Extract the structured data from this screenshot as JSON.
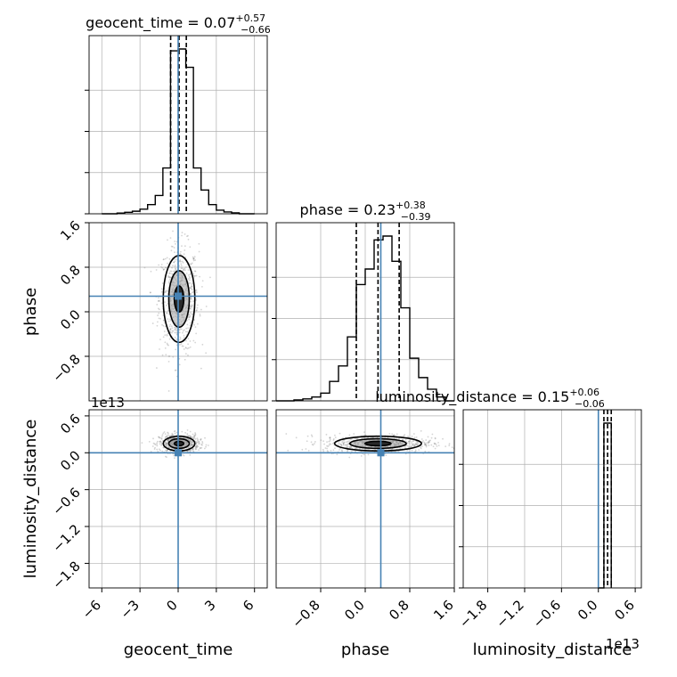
{
  "chart_data": {
    "type": "corner",
    "parameters": [
      "geocent_time",
      "phase",
      "luminosity_distance"
    ],
    "truths": [
      0,
      0.28,
      0
    ],
    "offset_text": {
      "luminosity_distance": "1e13"
    },
    "axes": {
      "geocent_time": {
        "range": [
          -7,
          7
        ],
        "ticks": [
          -6,
          -3,
          0,
          3,
          6
        ],
        "tick_labels": [
          "−6",
          "−3",
          "0",
          "3",
          "6"
        ]
      },
      "phase": {
        "range": [
          -1.6,
          1.6
        ],
        "ticks": [
          -0.8,
          0.0,
          0.8,
          1.6
        ],
        "tick_labels": [
          "−0.8",
          "0.0",
          "0.8",
          "1.6"
        ],
        "y_ticks": [
          -0.8,
          0.0,
          0.8,
          1.6
        ],
        "y_tick_labels": [
          "−0.8",
          "0.0",
          "0.8",
          "1.6"
        ]
      },
      "luminosity_distance": {
        "range": [
          -2.2,
          0.7
        ],
        "ticks": [
          -1.8,
          -1.2,
          -0.6,
          0.0,
          0.6
        ],
        "tick_labels": [
          "−1.8",
          "−1.2",
          "−0.6",
          "0.0",
          "0.6"
        ]
      }
    },
    "marginals": [
      {
        "parameter": "geocent_time",
        "title": {
          "label": "geocent_time",
          "median": "0.07",
          "plus": "+0.57",
          "minus": "−0.66"
        },
        "quantiles": [
          -0.59,
          0.07,
          0.64
        ],
        "bins": [
          -6,
          -5.4,
          -4.8,
          -4.2,
          -3.6,
          -3.0,
          -2.4,
          -1.8,
          -1.2,
          -0.6,
          0.0,
          0.6,
          1.2,
          1.8,
          2.4,
          3.0,
          3.6,
          4.2,
          4.8,
          5.4,
          6.0
        ],
        "counts": [
          0,
          0,
          0.4,
          0.8,
          1.4,
          2.5,
          5,
          10,
          25,
          89,
          90,
          80,
          25,
          13,
          5,
          2,
          1,
          0.5,
          0,
          0
        ]
      },
      {
        "parameter": "phase",
        "title": {
          "label": "phase",
          "median": "0.23",
          "plus": "+0.38",
          "minus": "−0.39"
        },
        "quantiles": [
          -0.16,
          0.23,
          0.61
        ],
        "bins": [
          -1.6,
          -1.44,
          -1.28,
          -1.12,
          -0.96,
          -0.8,
          -0.64,
          -0.48,
          -0.32,
          -0.16,
          0.0,
          0.16,
          0.32,
          0.48,
          0.64,
          0.8,
          0.96,
          1.12,
          1.28,
          1.44,
          1.6
        ],
        "counts": [
          0,
          0,
          0.5,
          1,
          2,
          4,
          10,
          18,
          33,
          60,
          68,
          83,
          85,
          72,
          48,
          22,
          12,
          6,
          2,
          0
        ]
      },
      {
        "parameter": "luminosity_distance",
        "title": {
          "label": "luminosity_distance",
          "median": "0.15",
          "plus": "+0.06",
          "minus": "−0.06"
        },
        "quantiles": [
          0.09,
          0.15,
          0.21
        ],
        "bins": [
          0.0,
          0.09,
          0.15,
          0.21
        ],
        "counts": [
          0,
          88,
          88
        ]
      }
    ],
    "posterior_center": {
      "geocent_time": 0.07,
      "phase": 0.23,
      "luminosity_distance": 0.15
    },
    "posterior_spread": {
      "geocent_time": 0.62,
      "phase": 0.39,
      "luminosity_distance": 0.06
    },
    "colors": {
      "truth": "#4682b4",
      "line": "#000000",
      "grid": "#b0b0b0",
      "samples": "#888888"
    }
  }
}
